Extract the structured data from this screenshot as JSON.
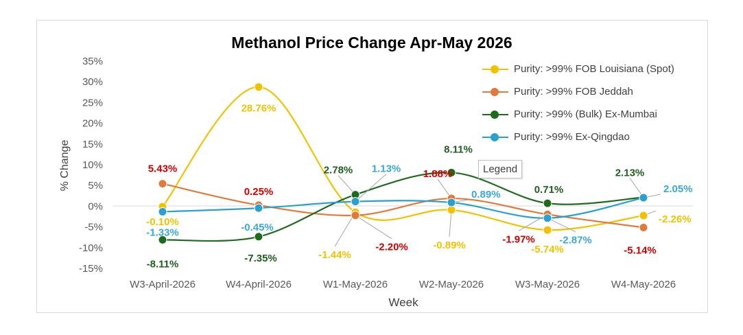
{
  "chart_data": {
    "type": "line",
    "title": "Methanol Price Change Apr-May 2026",
    "xlabel": "Week",
    "ylabel": "% Change",
    "categories": [
      "W3-April-2026",
      "W4-April-2026",
      "W1-May-2026",
      "W2-May-2026",
      "W3-May-2026",
      "W4-May-2026"
    ],
    "y_ticks": [
      "35%",
      "30%",
      "25%",
      "20%",
      "15%",
      "10%",
      "5%",
      "0%",
      "-5%",
      "-10%",
      "-15%"
    ],
    "ylim": [
      -15,
      35
    ],
    "grid": false,
    "legend_position": "top-right",
    "series": [
      {
        "name": "Purity: >99% FOB Louisiana (Spot)",
        "color": "#f2c200",
        "label_color": "#f2c200",
        "values": [
          -0.1,
          28.76,
          -1.44,
          -0.89,
          -5.74,
          -2.26
        ],
        "labels": [
          "-0.10%",
          "28.76%",
          "-1.44%",
          "-0.89%",
          "-5.74%",
          "-2.26%"
        ]
      },
      {
        "name": "Purity: >99% FOB Jeddah",
        "color": "#e07a3a",
        "label_color": "#d00000",
        "values": [
          5.43,
          0.25,
          -2.2,
          1.88,
          -1.97,
          -5.14
        ],
        "labels": [
          "5.43%",
          "0.25%",
          "-2.20%",
          "1.88%",
          "-1.97%",
          "-5.14%"
        ]
      },
      {
        "name": "Purity: >99% (Bulk) Ex-Mumbai",
        "color": "#1e6b1e",
        "label_color": "#1e5e1e",
        "values": [
          -8.11,
          -7.35,
          2.78,
          8.11,
          0.71,
          2.13
        ],
        "labels": [
          "-8.11%",
          "-7.35%",
          "2.78%",
          "8.11%",
          "0.71%",
          "2.13%"
        ]
      },
      {
        "name": "Purity: >99% Ex-Qingdao",
        "color": "#2aa0d0",
        "label_color": "#3aa8d8",
        "values": [
          -1.33,
          -0.45,
          1.13,
          0.89,
          -2.87,
          2.05
        ],
        "labels": [
          "-1.33%",
          "-0.45%",
          "1.13%",
          "0.89%",
          "-2.87%",
          "2.05%"
        ]
      }
    ]
  },
  "tooltip": {
    "text": "Legend"
  }
}
